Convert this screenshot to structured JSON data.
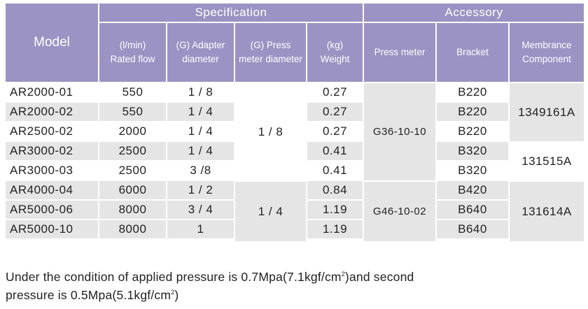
{
  "table": {
    "headers": {
      "model": "Model",
      "specification": "Specification",
      "accessory": "Accessory",
      "rated_flow_1": "(l/min)",
      "rated_flow_2": "Rated flow",
      "adapter_1": "(G) Adapter",
      "adapter_2": "diameter",
      "press_meter_dia_1": "(G) Press",
      "press_meter_dia_2": "meter diameter",
      "weight_1": "(kg)",
      "weight_2": "Weight",
      "press_meter": "Press meter",
      "bracket": "Bracket",
      "membrance_1": "Membrance",
      "membrance_2": "Component"
    },
    "rows": [
      {
        "model": "AR2000-01",
        "flow": "550",
        "adapter": "1 / 8",
        "weight": "0.27",
        "bracket": "B220"
      },
      {
        "model": "AR2000-02",
        "flow": "550",
        "adapter": "1 / 4",
        "weight": "0.27",
        "bracket": "B220"
      },
      {
        "model": "AR2500-02",
        "flow": "2000",
        "adapter": "1 / 4",
        "weight": "0.27",
        "bracket": "B220"
      },
      {
        "model": "AR3000-02",
        "flow": "2500",
        "adapter": "1 / 4",
        "weight": "0.41",
        "bracket": "B320"
      },
      {
        "model": "AR3000-03",
        "flow": "2500",
        "adapter": "3 /8",
        "weight": "0.41",
        "bracket": "B320"
      },
      {
        "model": "AR4000-04",
        "flow": "6000",
        "adapter": "1 / 2",
        "weight": "0.84",
        "bracket": "B420"
      },
      {
        "model": "AR5000-06",
        "flow": "8000",
        "adapter": "3 / 4",
        "weight": "1.19",
        "bracket": "B640"
      },
      {
        "model": "AR5000-10",
        "flow": "8000",
        "adapter": "1",
        "weight": "1.19",
        "bracket": "B640"
      }
    ],
    "merged": {
      "press_dia_a": "1 / 8",
      "press_dia_b": "1 / 4",
      "press_meter_a": "G36-10-10",
      "press_meter_b": "G46-10-02",
      "membrance_a": "1349161A",
      "membrance_b": "131515A",
      "membrance_c": "131614A"
    }
  },
  "note": {
    "line1_a": "Under the condition of applied pressure is 0.7Mpa(7.1kgf/cm",
    "sup1": "2",
    "line1_b": ")and second",
    "line2_a": "pressure is 0.5Mpa(5.1kgf/cm",
    "sup2": "2",
    "line2_b": ")"
  }
}
